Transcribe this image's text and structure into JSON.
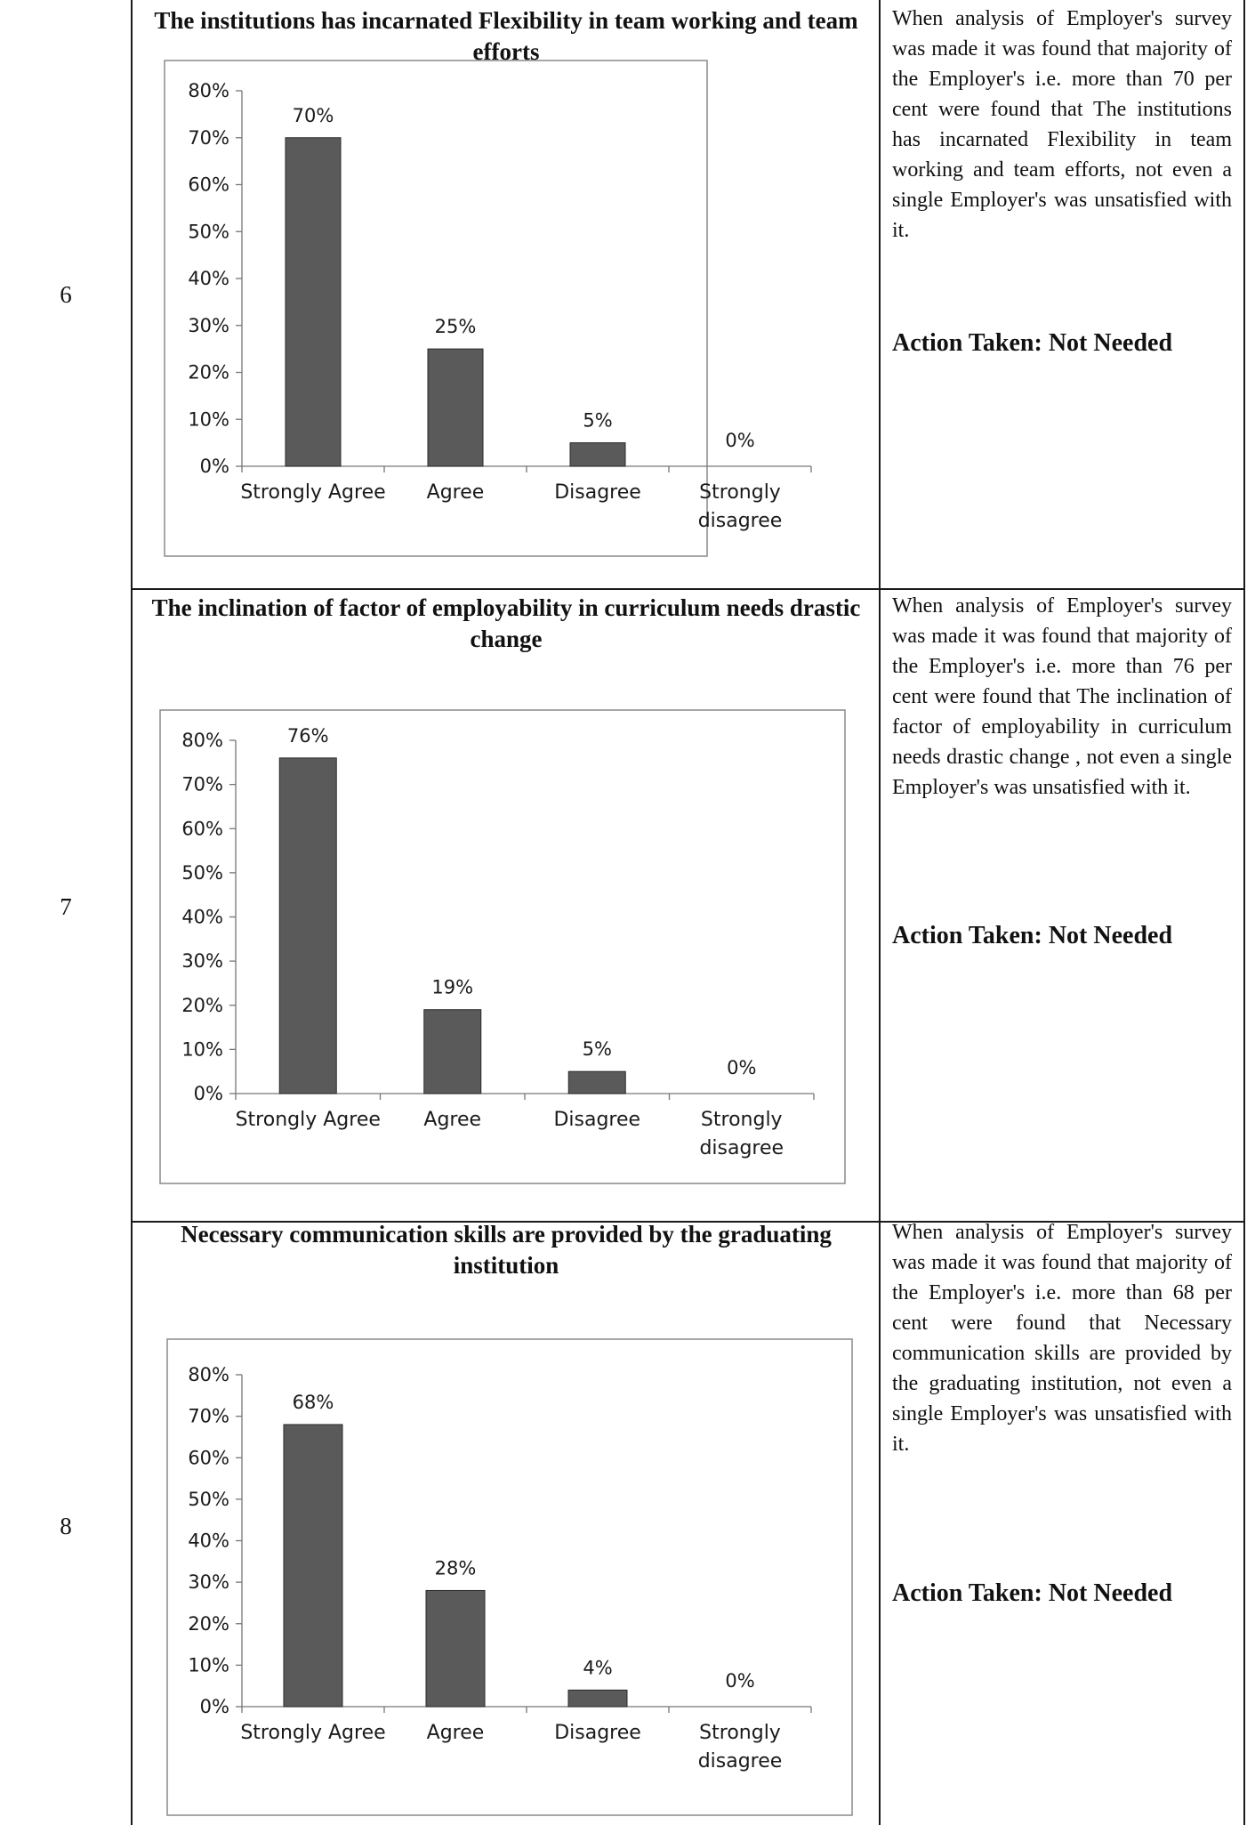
{
  "rows": [
    {
      "number": "6",
      "chart_title": "The institutions has incarnated Flexibility in team working and team efforts",
      "description": "When analysis of Employer's survey was made it was found that majority of the Employer's i.e. more than 70 per cent were found that The institutions has incarnated Flexibility in team working and team efforts, not even a single Employer's was unsatisfied with it.",
      "action": "Action Taken: Not Needed"
    },
    {
      "number": "7",
      "chart_title": "The inclination of factor of employability in curriculum needs drastic change",
      "description": "When analysis of Employer's survey was made it was found that majority of the Employer's i.e. more than 76 per cent were found that The inclination of factor of employability in curriculum needs drastic change , not even a single Employer's was unsatisfied with it.",
      "action": "Action Taken: Not Needed"
    },
    {
      "number": "8",
      "chart_title": "Necessary communication skills are provided by the graduating institution",
      "description": "When analysis of Employer's survey was made it was found that majority of the Employer's i.e. more than 68 per cent were found that Necessary communication skills are provided by the graduating institution, not even a single Employer's was unsatisfied with it.",
      "action": "Action Taken: Not Needed"
    }
  ],
  "chart_data": [
    {
      "type": "bar",
      "title": "The institutions has incarnated Flexibility in team working and team efforts",
      "categories": [
        "Strongly Agree",
        "Agree",
        "Disagree",
        "Strongly disagree"
      ],
      "values": [
        70,
        25,
        5,
        0
      ],
      "value_labels": [
        "70%",
        "25%",
        "5%",
        "0%"
      ],
      "y_ticks": [
        "0%",
        "10%",
        "20%",
        "30%",
        "40%",
        "50%",
        "60%",
        "70%",
        "80%"
      ],
      "ylim": [
        0,
        80
      ],
      "bar_color": "#5a5a5a"
    },
    {
      "type": "bar",
      "title": "The inclination of factor of employability in curriculum needs drastic change",
      "categories": [
        "Strongly Agree",
        "Agree",
        "Disagree",
        "Strongly disagree"
      ],
      "values": [
        76,
        19,
        5,
        0
      ],
      "value_labels": [
        "76%",
        "19%",
        "5%",
        "0%"
      ],
      "y_ticks": [
        "0%",
        "10%",
        "20%",
        "30%",
        "40%",
        "50%",
        "60%",
        "70%",
        "80%"
      ],
      "ylim": [
        0,
        80
      ],
      "bar_color": "#5a5a5a"
    },
    {
      "type": "bar",
      "title": "Necessary communication skills are provided by the graduating institution",
      "categories": [
        "Strongly Agree",
        "Agree",
        "Disagree",
        "Strongly disagree"
      ],
      "values": [
        68,
        28,
        4,
        0
      ],
      "value_labels": [
        "68%",
        "28%",
        "4%",
        "0%"
      ],
      "y_ticks": [
        "0%",
        "10%",
        "20%",
        "30%",
        "40%",
        "50%",
        "60%",
        "70%",
        "80%"
      ],
      "ylim": [
        0,
        80
      ],
      "bar_color": "#5a5a5a"
    }
  ]
}
